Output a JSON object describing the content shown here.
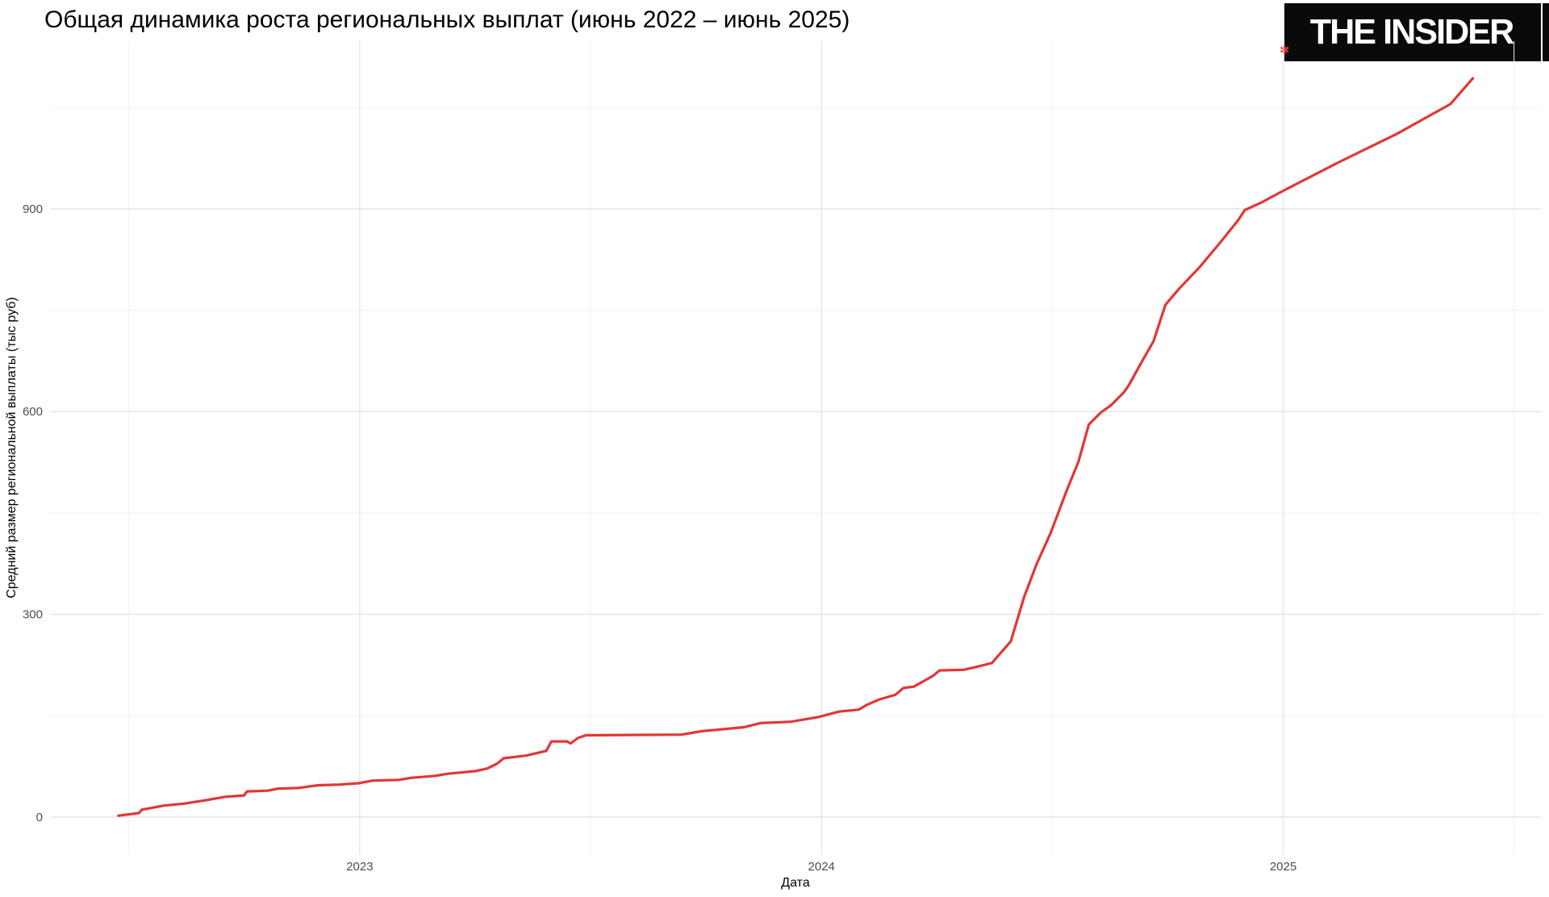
{
  "header": {
    "logo_text": "THE INSIDER",
    "logo_mark": "✱",
    "logo_bg_color": "#0a0a0a",
    "logo_text_color": "#ffffff"
  },
  "chart_data": {
    "type": "line",
    "title": "Общая динамика роста региональных выплат (июнь 2022 – июнь 2025)",
    "xlabel": "Дата",
    "ylabel": "Средний размер региональной выплаты (тыс руб)",
    "legend": "none",
    "grid": true,
    "line_color": "#e23636",
    "grid_major_color": "#e4e4e4",
    "grid_minor_color": "#f1f1f1",
    "tick_label_color": "#4d4d4d",
    "x_unit": "months since 2022-06-01 (fractional)",
    "x_domain_months": [
      -1.05,
      37.72
    ],
    "y_domain": [
      -55,
      1148
    ],
    "x_ticks": [
      {
        "label": "2023",
        "t": 7
      },
      {
        "label": "2024",
        "t": 19
      },
      {
        "label": "2025",
        "t": 31
      }
    ],
    "x_minor_months": [
      1,
      13,
      25,
      37
    ],
    "y_ticks": [
      0,
      300,
      600,
      900
    ],
    "y_minor_ticks": [
      150,
      450,
      750,
      1050
    ],
    "series": [
      {
        "name": "Средний размер региональной выплаты (тыс руб)",
        "points": [
          [
            0.73,
            2
          ],
          [
            1.26,
            6
          ],
          [
            1.34,
            11
          ],
          [
            1.91,
            17
          ],
          [
            2.45,
            20
          ],
          [
            3.0,
            25
          ],
          [
            3.5,
            30
          ],
          [
            3.99,
            32
          ],
          [
            4.07,
            38
          ],
          [
            4.61,
            39
          ],
          [
            4.87,
            42
          ],
          [
            5.39,
            43
          ],
          [
            5.92,
            47
          ],
          [
            6.44,
            48
          ],
          [
            6.96,
            50
          ],
          [
            7.34,
            54
          ],
          [
            8.01,
            55
          ],
          [
            8.33,
            58
          ],
          [
            8.96,
            61
          ],
          [
            9.27,
            64
          ],
          [
            10.01,
            68
          ],
          [
            10.32,
            72
          ],
          [
            10.57,
            79
          ],
          [
            10.74,
            87
          ],
          [
            11.33,
            91
          ],
          [
            11.85,
            98
          ],
          [
            11.98,
            112
          ],
          [
            12.38,
            112
          ],
          [
            12.48,
            109
          ],
          [
            12.67,
            117
          ],
          [
            12.88,
            121
          ],
          [
            15.36,
            122
          ],
          [
            15.88,
            127
          ],
          [
            16.99,
            133
          ],
          [
            17.41,
            139
          ],
          [
            18.19,
            141
          ],
          [
            18.5,
            144
          ],
          [
            18.92,
            148
          ],
          [
            19.45,
            156
          ],
          [
            19.97,
            159
          ],
          [
            20.18,
            166
          ],
          [
            20.5,
            174
          ],
          [
            20.92,
            181
          ],
          [
            21.13,
            191
          ],
          [
            21.4,
            193
          ],
          [
            21.9,
            209
          ],
          [
            22.07,
            217
          ],
          [
            22.7,
            218
          ],
          [
            23.01,
            222
          ],
          [
            23.43,
            228
          ],
          [
            23.92,
            260
          ],
          [
            24.27,
            326
          ],
          [
            24.59,
            374
          ],
          [
            24.96,
            421
          ],
          [
            25.36,
            481
          ],
          [
            25.68,
            526
          ],
          [
            25.95,
            581
          ],
          [
            26.27,
            599
          ],
          [
            26.52,
            609
          ],
          [
            26.87,
            629
          ],
          [
            27.0,
            640
          ],
          [
            27.31,
            672
          ],
          [
            27.63,
            704
          ],
          [
            27.94,
            758
          ],
          [
            28.3,
            782
          ],
          [
            28.82,
            813
          ],
          [
            29.35,
            849
          ],
          [
            29.83,
            883
          ],
          [
            30.0,
            898
          ],
          [
            30.46,
            910
          ],
          [
            30.98,
            926
          ],
          [
            32.45,
            969
          ],
          [
            33.96,
            1011
          ],
          [
            35.35,
            1055
          ],
          [
            35.93,
            1093
          ]
        ]
      }
    ]
  }
}
